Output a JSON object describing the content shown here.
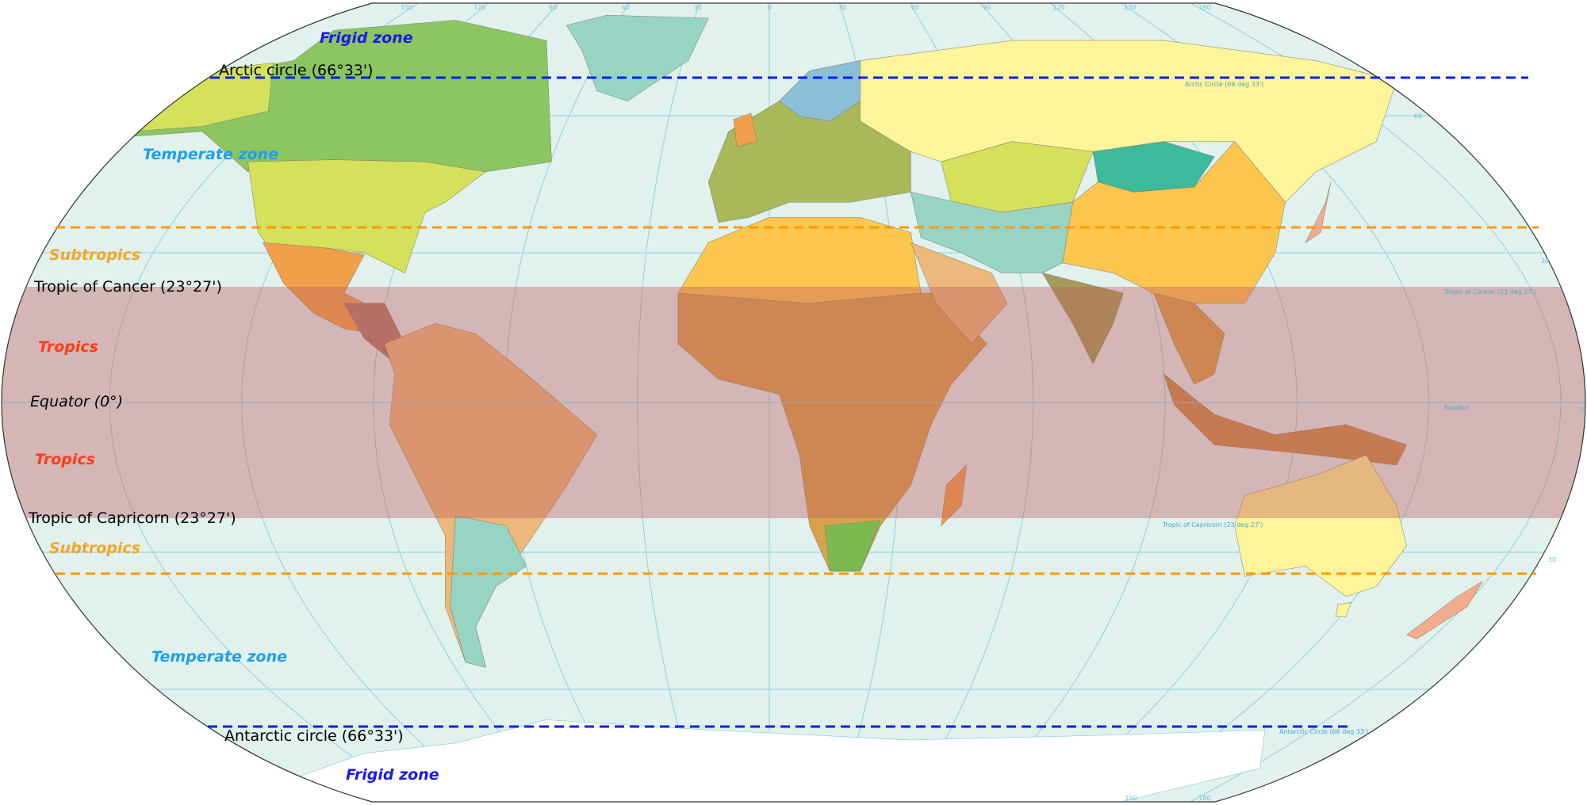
{
  "colors": {
    "ocean": "#e0f1ee",
    "tropics_band": "#c06060",
    "frigid_boundary": "#0022ee",
    "subtropics_boundary": "#ff9900",
    "gridline": "#8fd0e0",
    "frigid_text": "#1a1aee",
    "temperate_text": "#1da1e8",
    "subtropics_text": "#f5a623",
    "tropics_text": "#ff3b1a"
  },
  "zones": {
    "frigid_north": "Frigid zone",
    "arctic_circle": "Arctic circle (66°33')",
    "temperate_north": "Temperate zone",
    "subtropics_north": "Subtropics",
    "tropic_cancer": "Tropic of Cancer (23°27')",
    "tropics_north": "Tropics",
    "equator": "Equator (0°)",
    "tropics_south": "Tropics",
    "tropic_capricorn": "Tropic of Capricorn (23°27')",
    "subtropics_south": "Subtropics",
    "temperate_south": "Temperate zone",
    "antarctic_circle": "Antarctic circle (66°33')",
    "frigid_south": "Frigid zone"
  },
  "line_labels": {
    "arctic": "Arctic Circle (66 deg 33')",
    "cancer": "Tropic of Cancer (23 deg 27')",
    "equator": "Equator",
    "capricorn": "Tropic of Capricorn (23 deg 27')",
    "antarctic": "Antarctic Circle (66 deg 33')"
  },
  "longitude_labels_top": [
    "150",
    "120",
    "90",
    "60",
    "30",
    "0",
    "30",
    "60",
    "90",
    "120",
    "150",
    "180"
  ],
  "longitude_labels_bottom": [
    "150",
    "180"
  ],
  "latitude_labels": [
    "60",
    "30",
    "0",
    "30"
  ]
}
